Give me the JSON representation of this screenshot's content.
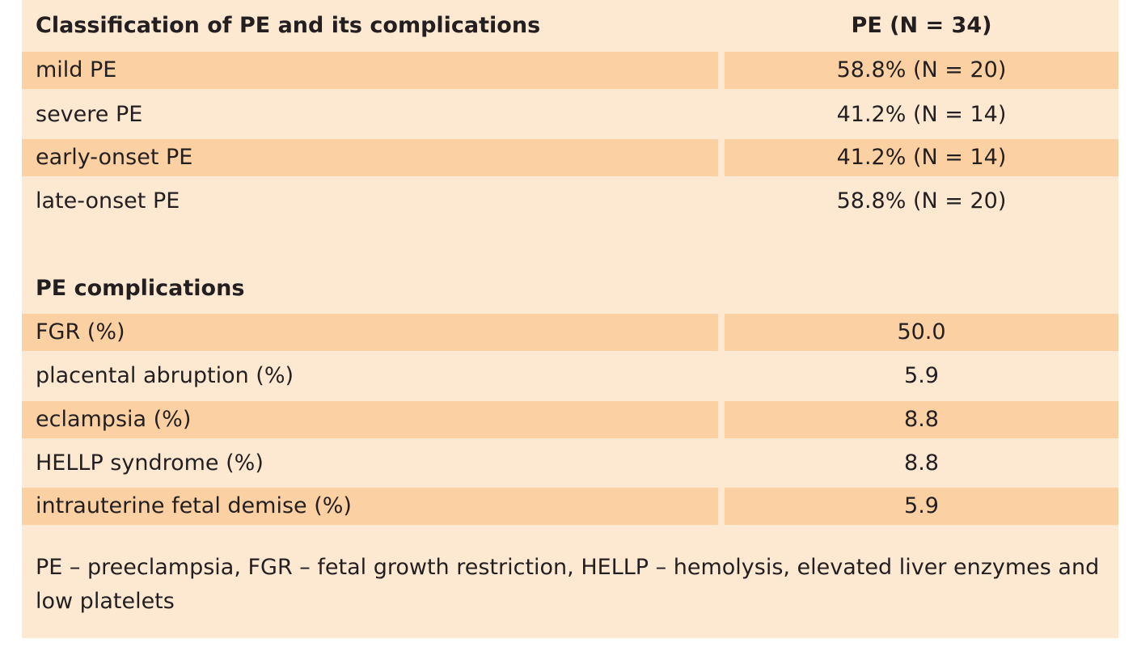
{
  "header": {
    "col1": "Classification of PE and its complications",
    "col2": "PE (N = 34)"
  },
  "classification_rows": [
    {
      "label": "mild PE",
      "value": "58.8% (N = 20)"
    },
    {
      "label": "severe PE",
      "value": "41.2% (N = 14)"
    },
    {
      "label": "early-onset PE",
      "value": "41.2% (N = 14)"
    },
    {
      "label": "late-onset PE",
      "value": "58.8% (N = 20)"
    }
  ],
  "complications_title": "PE complications",
  "complication_rows": [
    {
      "label": "FGR (%)",
      "value": "50.0"
    },
    {
      "label": "placental abruption (%)",
      "value": "5.9"
    },
    {
      "label": "eclampsia (%)",
      "value": "8.8"
    },
    {
      "label": "HELLP syndrome (%)",
      "value": "8.8"
    },
    {
      "label": "intrauterine fetal demise (%)",
      "value": "5.9"
    }
  ],
  "footnote": "PE – preeclampsia, FGR – fetal growth restriction, HELLP – hemolysis, elevated liver enzymes and low platelets"
}
